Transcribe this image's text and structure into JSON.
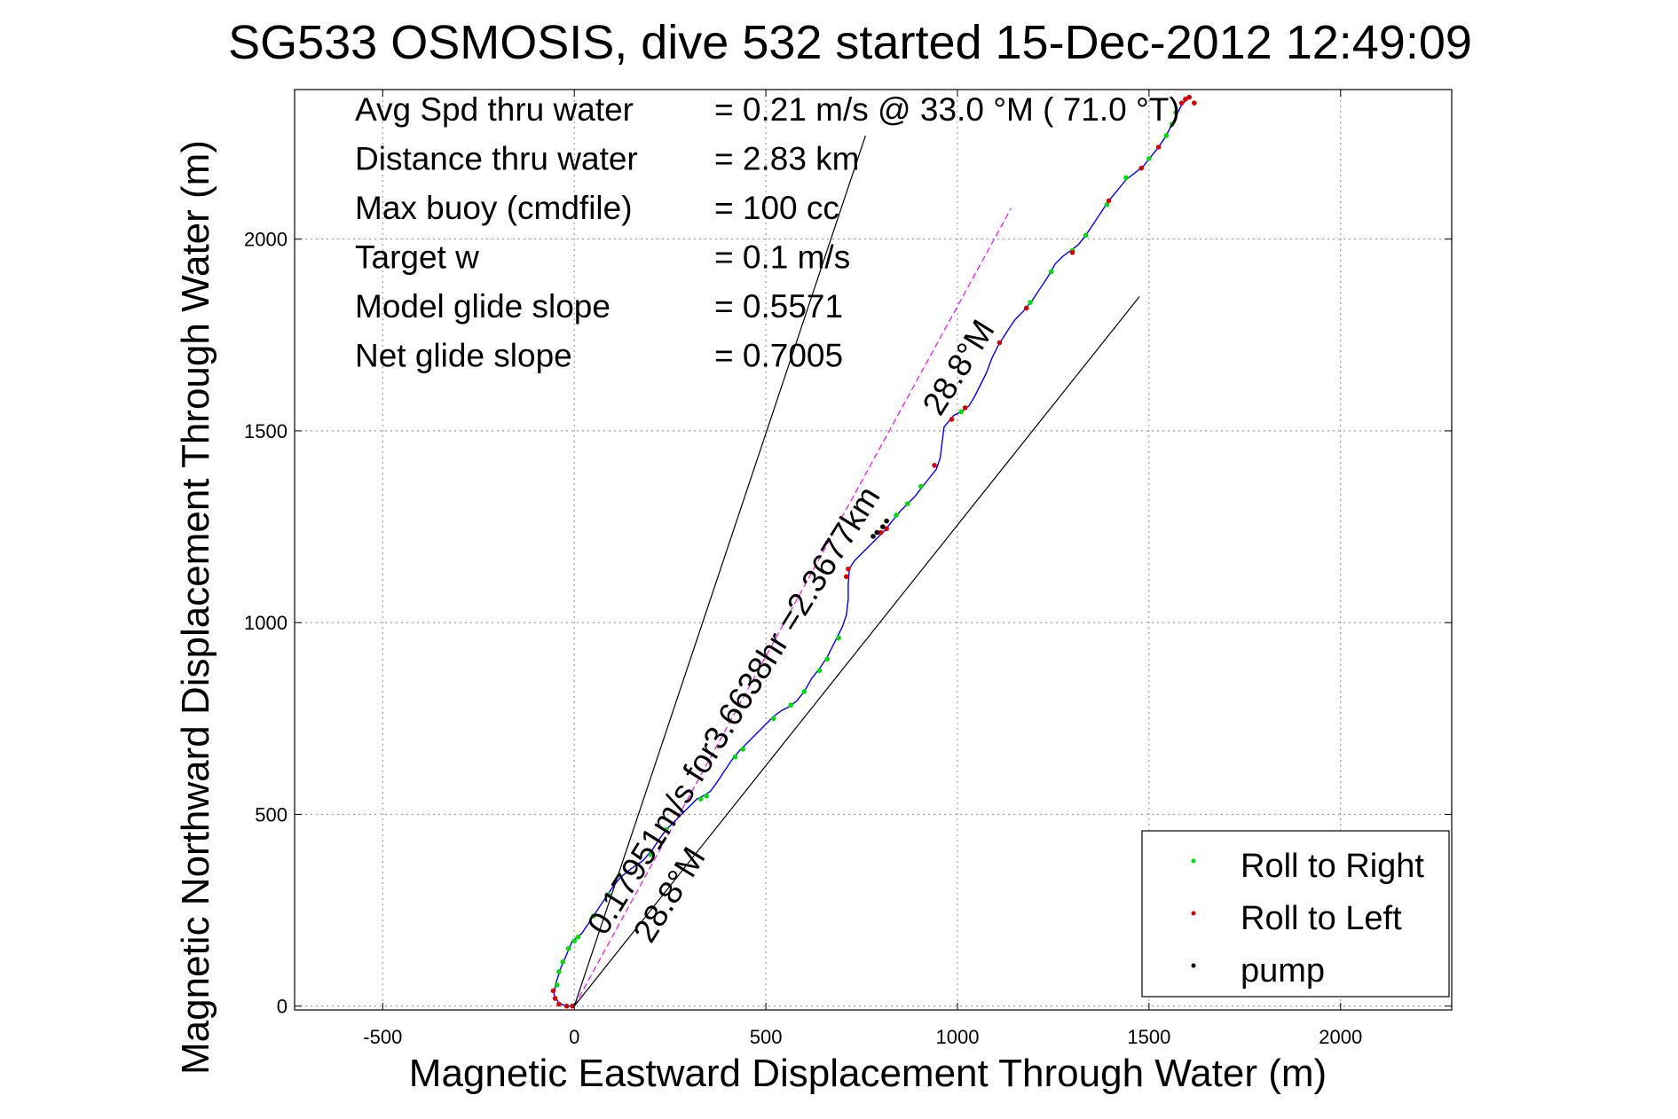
{
  "chart_data": {
    "type": "line",
    "title": "SG533 OSMOSIS, dive 532 started 15-Dec-2012 12:49:09",
    "xlabel": "Magnetic Eastward Displacement Through Water (m)",
    "ylabel": "Magnetic Northward Displacement Through Water (m)",
    "xlim": [
      -730,
      2290
    ],
    "ylim": [
      -10,
      2390
    ],
    "xticks": [
      -500,
      0,
      500,
      1000,
      1500,
      2000
    ],
    "yticks": [
      0,
      500,
      1000,
      1500,
      2000
    ],
    "grid": true,
    "legend": {
      "placement": "bottom-right",
      "entries": [
        {
          "label": "Roll to Right",
          "color": "#00dd00"
        },
        {
          "label": "Roll to Left",
          "color": "#dd0000"
        },
        {
          "label": "pump",
          "color": "#000000"
        }
      ]
    },
    "stats": [
      {
        "label": "Avg Spd thru water",
        "value": "=  0.21 m/s @  33.0 °M ( 71.0 °T)"
      },
      {
        "label": "Distance thru water",
        "value": "=  2.83 km"
      },
      {
        "label": "Max buoy (cmdfile)",
        "value": "= 100 cc"
      },
      {
        "label": "Target w",
        "value": "= 0.1 m/s"
      },
      {
        "label": "Model glide slope",
        "value": "= 0.5571"
      },
      {
        "label": "Net glide slope",
        "value": "= 0.7005"
      }
    ],
    "annotations": [
      {
        "text": "0.17951m/s for3.6638hr =2.3677km",
        "x": 80,
        "y": 180,
        "angle_deg": 58
      },
      {
        "text": "28.8°M",
        "x": 200,
        "y": 160,
        "angle_deg": 58
      },
      {
        "text": "28.8°M",
        "x": 955,
        "y": 1535,
        "angle_deg": 58
      }
    ],
    "series": [
      {
        "kind": "track",
        "color": "#0000ff",
        "points": [
          [
            0,
            0
          ],
          [
            -20,
            0
          ],
          [
            -40,
            8
          ],
          [
            -53,
            30
          ],
          [
            -48,
            60
          ],
          [
            -35,
            100
          ],
          [
            -20,
            135
          ],
          [
            -5,
            170
          ],
          [
            20,
            190
          ],
          [
            40,
            220
          ],
          [
            60,
            250
          ],
          [
            80,
            280
          ],
          [
            100,
            310
          ],
          [
            120,
            335
          ],
          [
            150,
            360
          ],
          [
            180,
            380
          ],
          [
            205,
            410
          ],
          [
            225,
            440
          ],
          [
            240,
            460
          ],
          [
            255,
            475
          ],
          [
            280,
            500
          ],
          [
            300,
            520
          ],
          [
            320,
            540
          ],
          [
            340,
            550
          ],
          [
            355,
            560
          ],
          [
            370,
            580
          ],
          [
            390,
            610
          ],
          [
            410,
            640
          ],
          [
            430,
            665
          ],
          [
            455,
            690
          ],
          [
            480,
            715
          ],
          [
            500,
            735
          ],
          [
            520,
            755
          ],
          [
            540,
            770
          ],
          [
            560,
            780
          ],
          [
            580,
            795
          ],
          [
            600,
            820
          ],
          [
            620,
            855
          ],
          [
            640,
            880
          ],
          [
            660,
            910
          ],
          [
            680,
            950
          ],
          [
            700,
            990
          ],
          [
            710,
            1020
          ],
          [
            715,
            1060
          ],
          [
            715,
            1100
          ],
          [
            718,
            1140
          ],
          [
            730,
            1160
          ],
          [
            750,
            1180
          ],
          [
            770,
            1200
          ],
          [
            790,
            1220
          ],
          [
            810,
            1240
          ],
          [
            830,
            1265
          ],
          [
            850,
            1290
          ],
          [
            870,
            1310
          ],
          [
            890,
            1330
          ],
          [
            905,
            1350
          ],
          [
            925,
            1375
          ],
          [
            945,
            1400
          ],
          [
            955,
            1430
          ],
          [
            960,
            1470
          ],
          [
            965,
            1510
          ],
          [
            990,
            1540
          ],
          [
            1010,
            1550
          ],
          [
            1030,
            1565
          ],
          [
            1045,
            1590
          ],
          [
            1060,
            1620
          ],
          [
            1075,
            1650
          ],
          [
            1090,
            1690
          ],
          [
            1105,
            1720
          ],
          [
            1130,
            1760
          ],
          [
            1150,
            1790
          ],
          [
            1170,
            1810
          ],
          [
            1195,
            1840
          ],
          [
            1215,
            1870
          ],
          [
            1235,
            1900
          ],
          [
            1255,
            1935
          ],
          [
            1275,
            1955
          ],
          [
            1295,
            1970
          ],
          [
            1315,
            1985
          ],
          [
            1335,
            2010
          ],
          [
            1355,
            2040
          ],
          [
            1375,
            2070
          ],
          [
            1395,
            2100
          ],
          [
            1420,
            2130
          ],
          [
            1440,
            2155
          ],
          [
            1460,
            2170
          ],
          [
            1485,
            2190
          ],
          [
            1505,
            2215
          ],
          [
            1525,
            2240
          ],
          [
            1545,
            2270
          ],
          [
            1560,
            2300
          ],
          [
            1575,
            2330
          ],
          [
            1585,
            2350
          ],
          [
            1595,
            2360
          ]
        ]
      },
      {
        "kind": "line",
        "name": "",
        "color": "#ff00ff",
        "dash": true,
        "points": [
          [
            0,
            0
          ],
          [
            1140,
            2080
          ]
        ]
      },
      {
        "kind": "line",
        "color": "#000000",
        "points": [
          [
            0,
            0
          ],
          [
            760,
            2270
          ]
        ]
      },
      {
        "kind": "line",
        "color": "#000000",
        "points": [
          [
            0,
            0
          ],
          [
            1475,
            1850
          ]
        ]
      },
      {
        "kind": "roll_right",
        "color": "#00dd00",
        "points": [
          [
            -45,
            55
          ],
          [
            -40,
            90
          ],
          [
            -30,
            115
          ],
          [
            -15,
            150
          ],
          [
            0,
            170
          ],
          [
            10,
            180
          ],
          [
            50,
            235
          ],
          [
            90,
            290
          ],
          [
            200,
            395
          ],
          [
            240,
            460
          ],
          [
            330,
            540
          ],
          [
            345,
            548
          ],
          [
            420,
            650
          ],
          [
            440,
            670
          ],
          [
            520,
            750
          ],
          [
            565,
            785
          ],
          [
            600,
            820
          ],
          [
            640,
            875
          ],
          [
            660,
            905
          ],
          [
            690,
            960
          ],
          [
            840,
            1280
          ],
          [
            870,
            1310
          ],
          [
            905,
            1355
          ],
          [
            1010,
            1550
          ],
          [
            1190,
            1835
          ],
          [
            1245,
            1915
          ],
          [
            1300,
            1970
          ],
          [
            1335,
            2010
          ],
          [
            1390,
            2090
          ],
          [
            1440,
            2160
          ],
          [
            1500,
            2210
          ],
          [
            1545,
            2270
          ],
          [
            1560,
            2300
          ],
          [
            1570,
            2330
          ]
        ]
      },
      {
        "kind": "roll_left",
        "color": "#dd0000",
        "points": [
          [
            -55,
            40
          ],
          [
            -50,
            20
          ],
          [
            -40,
            5
          ],
          [
            -20,
            0
          ],
          [
            -5,
            0
          ],
          [
            710,
            1120
          ],
          [
            715,
            1140
          ],
          [
            800,
            1235
          ],
          [
            815,
            1245
          ],
          [
            940,
            1410
          ],
          [
            985,
            1530
          ],
          [
            1020,
            1560
          ],
          [
            1110,
            1730
          ],
          [
            1180,
            1820
          ],
          [
            1300,
            1965
          ],
          [
            1395,
            2100
          ],
          [
            1480,
            2185
          ],
          [
            1525,
            2240
          ],
          [
            1585,
            2355
          ],
          [
            1595,
            2365
          ],
          [
            1605,
            2370
          ],
          [
            1618,
            2355
          ]
        ]
      },
      {
        "kind": "pump",
        "color": "#000000",
        "points": [
          [
            780,
            1225
          ],
          [
            790,
            1235
          ],
          [
            805,
            1250
          ],
          [
            815,
            1265
          ]
        ]
      }
    ]
  }
}
